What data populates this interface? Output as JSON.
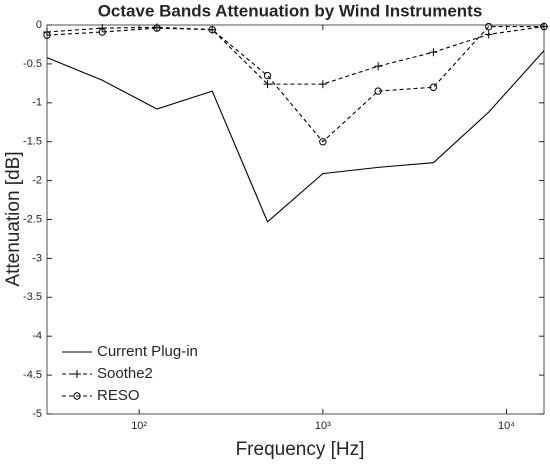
{
  "chart_data": {
    "type": "line",
    "title": "Octave Bands Attenuation by Wind Instruments",
    "x_label": "Frequency [Hz]",
    "y_label": "Attenuation [dB]",
    "x": [
      31.5,
      63,
      125,
      250,
      500,
      1000,
      2000,
      4000,
      8000,
      16000
    ],
    "xscale": "log",
    "xlim": [
      31.5,
      16000
    ],
    "xticks": [
      {
        "value": 100,
        "label": "10²"
      },
      {
        "value": 1000,
        "label": "10³"
      },
      {
        "value": 10000,
        "label": "10⁴"
      }
    ],
    "ylim": [
      -5,
      0
    ],
    "yticks": [
      0,
      -0.5,
      -1,
      -1.5,
      -2,
      -2.5,
      -3,
      -3.5,
      -4,
      -4.5,
      -5
    ],
    "grid": false,
    "legend": "lower left",
    "series": [
      {
        "name": "Current Plug-in",
        "color": "#000000",
        "linestyle": "solid",
        "marker": "none",
        "values": [
          -0.42,
          -0.71,
          -1.08,
          -0.85,
          -2.53,
          -1.91,
          -1.83,
          -1.77,
          -1.12,
          -0.33
        ]
      },
      {
        "name": "Soothe2",
        "color": "#000000",
        "linestyle": "dashed",
        "marker": "plus",
        "values": [
          -0.09,
          -0.04,
          -0.03,
          -0.06,
          -0.76,
          -0.76,
          -0.53,
          -0.35,
          -0.12,
          -0.02
        ]
      },
      {
        "name": "RESO",
        "color": "#000000",
        "linestyle": "dashed",
        "marker": "circle",
        "values": [
          -0.13,
          -0.09,
          -0.04,
          -0.06,
          -0.65,
          -1.5,
          -0.85,
          -0.8,
          -0.02,
          -0.02
        ]
      }
    ]
  }
}
